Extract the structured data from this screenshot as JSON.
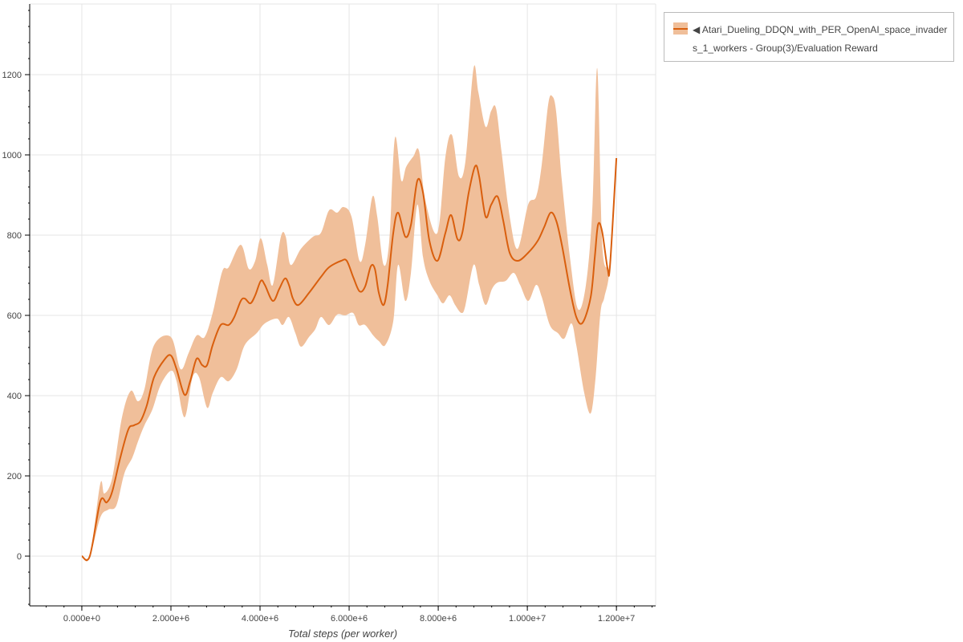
{
  "chart_data": {
    "type": "line",
    "title": "",
    "xlabel": "Total steps (per worker)",
    "ylabel": "",
    "xlim": [
      -1170000.0,
      12880000.0
    ],
    "ylim": [
      -124,
      1376
    ],
    "grid": true,
    "legend_position": "outside-top-right",
    "x_ticks": [
      0,
      2000000.0,
      4000000.0,
      6000000.0,
      8000000.0,
      10000000.0,
      12000000.0
    ],
    "x_tick_labels": [
      "0.000e+0",
      "2.000e+6",
      "4.000e+6",
      "6.000e+6",
      "8.000e+6",
      "1.000e+7",
      "1.200e+7"
    ],
    "y_ticks": [
      0,
      200,
      400,
      600,
      800,
      1000,
      1200
    ],
    "y_tick_labels": [
      "0",
      "200",
      "400",
      "600",
      "800",
      "1000",
      "1200"
    ],
    "colors": {
      "line": "#d95f0e",
      "band": "#f0bf9a"
    },
    "series": [
      {
        "name": "◀ Atari_Dueling_DDQN_with_PER_OpenAI_space_invaders_1_workers - Group(3)/Evaluation Reward",
        "mean": [
          [
            0,
            0
          ],
          [
            180000.0,
            0
          ],
          [
            414000.0,
            136
          ],
          [
            559000.0,
            134
          ],
          [
            685000.0,
            162
          ],
          [
            865000.0,
            246
          ],
          [
            1045000.0,
            316
          ],
          [
            1171000.0,
            326
          ],
          [
            1315000.0,
            336
          ],
          [
            1459000.0,
            376
          ],
          [
            1622000.0,
            446
          ],
          [
            1856000.0,
            490
          ],
          [
            2000000.0,
            500
          ],
          [
            2126000.0,
            466
          ],
          [
            2306000.0,
            402
          ],
          [
            2432000.0,
            436
          ],
          [
            2577000.0,
            492
          ],
          [
            2703000.0,
            476
          ],
          [
            2811000.0,
            476
          ],
          [
            2937000.0,
            526
          ],
          [
            3117000.0,
            576
          ],
          [
            3297000.0,
            576
          ],
          [
            3423000.0,
            596
          ],
          [
            3568000.0,
            636
          ],
          [
            3658000.0,
            642
          ],
          [
            3784000.0,
            630
          ],
          [
            3892000.0,
            650
          ],
          [
            4018000.0,
            686
          ],
          [
            4108000.0,
            676
          ],
          [
            4288000.0,
            636
          ],
          [
            4432000.0,
            666
          ],
          [
            4559000.0,
            692
          ],
          [
            4649000.0,
            676
          ],
          [
            4739000.0,
            642
          ],
          [
            4865000.0,
            626
          ],
          [
            5099000.0,
            656
          ],
          [
            5369000.0,
            696
          ],
          [
            5550000.0,
            720
          ],
          [
            5820000.0,
            736
          ],
          [
            5946000.0,
            736
          ],
          [
            6090000.0,
            696
          ],
          [
            6234000.0,
            660
          ],
          [
            6360000.0,
            672
          ],
          [
            6486000.0,
            722
          ],
          [
            6577000.0,
            716
          ],
          [
            6667000.0,
            656
          ],
          [
            6775000.0,
            626
          ],
          [
            6865000.0,
            676
          ],
          [
            6991000.0,
            806
          ],
          [
            7099000.0,
            856
          ],
          [
            7261000.0,
            796
          ],
          [
            7387000.0,
            826
          ],
          [
            7532000.0,
            936
          ],
          [
            7658000.0,
            906
          ],
          [
            7802000.0,
            786
          ],
          [
            7982000.0,
            736
          ],
          [
            8162000.0,
            806
          ],
          [
            8288000.0,
            850
          ],
          [
            8432000.0,
            790
          ],
          [
            8541000.0,
            806
          ],
          [
            8685000.0,
            906
          ],
          [
            8829000.0,
            972
          ],
          [
            8919000.0,
            946
          ],
          [
            9063000.0,
            846
          ],
          [
            9189000.0,
            876
          ],
          [
            9333000.0,
            896
          ],
          [
            9459000.0,
            836
          ],
          [
            9604000.0,
            756
          ],
          [
            9784000.0,
            736
          ],
          [
            10018000.0,
            756
          ],
          [
            10234000.0,
            786
          ],
          [
            10378000.0,
            820
          ],
          [
            10523000.0,
            856
          ],
          [
            10649000.0,
            836
          ],
          [
            10775000.0,
            776
          ],
          [
            10955000.0,
            666
          ],
          [
            11099000.0,
            596
          ],
          [
            11243000.0,
            582
          ],
          [
            11423000.0,
            646
          ],
          [
            11514000.0,
            746
          ],
          [
            11586000.0,
            826
          ],
          [
            11676000.0,
            810
          ],
          [
            11802000.0,
            716
          ],
          [
            11856000.0,
            726
          ],
          [
            12000000.0,
            992
          ]
        ],
        "upper": [
          [
            0,
            0
          ],
          [
            180000.0,
            0
          ],
          [
            414000.0,
            180
          ],
          [
            505000.0,
            156
          ],
          [
            685000.0,
            196
          ],
          [
            901000.0,
            346
          ],
          [
            1099000.0,
            412
          ],
          [
            1261000.0,
            386
          ],
          [
            1405000.0,
            416
          ],
          [
            1622000.0,
            526
          ],
          [
            2000000.0,
            546
          ],
          [
            2216000.0,
            466
          ],
          [
            2396000.0,
            506
          ],
          [
            2577000.0,
            550
          ],
          [
            2757000.0,
            546
          ],
          [
            2937000.0,
            606
          ],
          [
            3153000.0,
            710
          ],
          [
            3297000.0,
            720
          ],
          [
            3568000.0,
            776
          ],
          [
            3748000.0,
            716
          ],
          [
            3892000.0,
            736
          ],
          [
            4018000.0,
            792
          ],
          [
            4162000.0,
            726
          ],
          [
            4288000.0,
            676
          ],
          [
            4468000.0,
            796
          ],
          [
            4577000.0,
            796
          ],
          [
            4685000.0,
            726
          ],
          [
            4919000.0,
            766
          ],
          [
            5189000.0,
            796
          ],
          [
            5369000.0,
            806
          ],
          [
            5550000.0,
            862
          ],
          [
            5730000.0,
            856
          ],
          [
            5874000.0,
            870
          ],
          [
            6054000.0,
            846
          ],
          [
            6234000.0,
            736
          ],
          [
            6360000.0,
            776
          ],
          [
            6523000.0,
            896
          ],
          [
            6631000.0,
            846
          ],
          [
            6775000.0,
            726
          ],
          [
            6901000.0,
            786
          ],
          [
            7027000.0,
            1042
          ],
          [
            7171000.0,
            936
          ],
          [
            7279000.0,
            970
          ],
          [
            7441000.0,
            996
          ],
          [
            7568000.0,
            1010
          ],
          [
            7712000.0,
            886
          ],
          [
            7982000.0,
            806
          ],
          [
            8162000.0,
            996
          ],
          [
            8306000.0,
            1050
          ],
          [
            8468000.0,
            946
          ],
          [
            8613000.0,
            986
          ],
          [
            8793000.0,
            1216
          ],
          [
            8901000.0,
            1156
          ],
          [
            9063000.0,
            1070
          ],
          [
            9189000.0,
            1110
          ],
          [
            9297000.0,
            1116
          ],
          [
            9423000.0,
            1006
          ],
          [
            9604000.0,
            846
          ],
          [
            9784000.0,
            766
          ],
          [
            10018000.0,
            876
          ],
          [
            10198000.0,
            896
          ],
          [
            10324000.0,
            976
          ],
          [
            10468000.0,
            1126
          ],
          [
            10559000.0,
            1146
          ],
          [
            10649000.0,
            1106
          ],
          [
            10775000.0,
            936
          ],
          [
            10955000.0,
            746
          ],
          [
            11135000.0,
            616
          ],
          [
            11315000.0,
            676
          ],
          [
            11459000.0,
            866
          ],
          [
            11568000.0,
            1216
          ],
          [
            11676000.0,
            786
          ],
          [
            11802000.0,
            716
          ],
          [
            11856000.0,
            726
          ],
          [
            12000000.0,
            992
          ]
        ],
        "lower": [
          [
            0,
            0
          ],
          [
            180000.0,
            0
          ],
          [
            414000.0,
            96
          ],
          [
            595000.0,
            116
          ],
          [
            775000.0,
            126
          ],
          [
            955000.0,
            206
          ],
          [
            1135000.0,
            246
          ],
          [
            1261000.0,
            286
          ],
          [
            1405000.0,
            326
          ],
          [
            1586000.0,
            366
          ],
          [
            1766000.0,
            426
          ],
          [
            2000000.0,
            462
          ],
          [
            2126000.0,
            436
          ],
          [
            2306000.0,
            346
          ],
          [
            2486000.0,
            446
          ],
          [
            2631000.0,
            446
          ],
          [
            2811000.0,
            370
          ],
          [
            2937000.0,
            406
          ],
          [
            3117000.0,
            446
          ],
          [
            3297000.0,
            436
          ],
          [
            3477000.0,
            466
          ],
          [
            3658000.0,
            526
          ],
          [
            3928000.0,
            556
          ],
          [
            4108000.0,
            580
          ],
          [
            4378000.0,
            592
          ],
          [
            4505000.0,
            576
          ],
          [
            4649000.0,
            596
          ],
          [
            4793000.0,
            556
          ],
          [
            4919000.0,
            522
          ],
          [
            5099000.0,
            546
          ],
          [
            5243000.0,
            566
          ],
          [
            5369000.0,
            596
          ],
          [
            5550000.0,
            576
          ],
          [
            5730000.0,
            602
          ],
          [
            5910000.0,
            600
          ],
          [
            6090000.0,
            606
          ],
          [
            6216000.0,
            576
          ],
          [
            6360000.0,
            576
          ],
          [
            6541000.0,
            550
          ],
          [
            6667000.0,
            536
          ],
          [
            6811000.0,
            526
          ],
          [
            6991000.0,
            586
          ],
          [
            7099000.0,
            726
          ],
          [
            7261000.0,
            636
          ],
          [
            7387000.0,
            706
          ],
          [
            7532000.0,
            876
          ],
          [
            7658000.0,
            746
          ],
          [
            7802000.0,
            686
          ],
          [
            7982000.0,
            650
          ],
          [
            8108000.0,
            630
          ],
          [
            8252000.0,
            650
          ],
          [
            8378000.0,
            626
          ],
          [
            8523000.0,
            606
          ],
          [
            8613000.0,
            626
          ],
          [
            8793000.0,
            726
          ],
          [
            8919000.0,
            676
          ],
          [
            9063000.0,
            626
          ],
          [
            9207000.0,
            666
          ],
          [
            9333000.0,
            682
          ],
          [
            9514000.0,
            686
          ],
          [
            9694000.0,
            706
          ],
          [
            9838000.0,
            676
          ],
          [
            10018000.0,
            636
          ],
          [
            10198000.0,
            676
          ],
          [
            10324000.0,
            646
          ],
          [
            10505000.0,
            576
          ],
          [
            10685000.0,
            556
          ],
          [
            10829000.0,
            542
          ],
          [
            10991000.0,
            580
          ],
          [
            11099000.0,
            526
          ],
          [
            11279000.0,
            406
          ],
          [
            11423000.0,
            356
          ],
          [
            11532000.0,
            446
          ],
          [
            11640000.0,
            606
          ],
          [
            11730000.0,
            646
          ],
          [
            11856000.0,
            726
          ],
          [
            12000000.0,
            992
          ]
        ]
      }
    ]
  },
  "legend": {
    "label": "◀ Atari_Dueling_DDQN_with_PER_OpenAI_space_invaders_1_workers - Group(3)/Evaluation Reward"
  }
}
